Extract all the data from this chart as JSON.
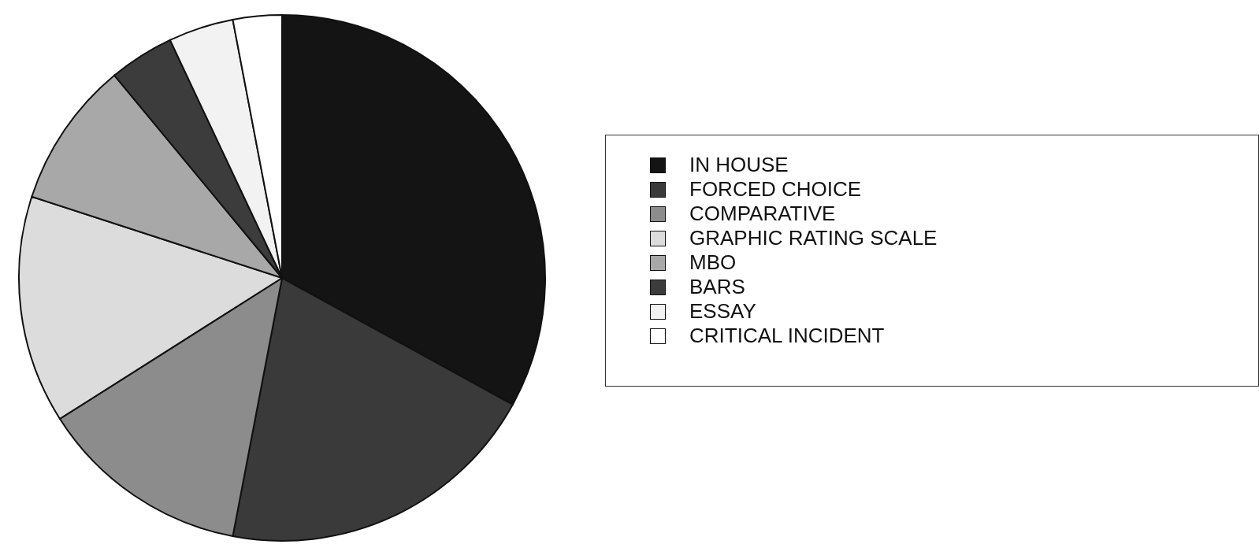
{
  "chart_data": {
    "type": "pie",
    "categories": [
      "IN HOUSE",
      "FORCED CHOICE",
      "COMPARATIVE",
      "GRAPHIC RATING SCALE",
      "MBO",
      "BARS",
      "ESSAY",
      "CRITICAL INCIDENT"
    ],
    "values": [
      33,
      20,
      13,
      14,
      9,
      4,
      4,
      3
    ],
    "colors": [
      "#141414",
      "#3a3a3a",
      "#8c8c8c",
      "#dcdcdc",
      "#a8a8a8",
      "#3c3c3c",
      "#f2f2f2",
      "#ffffff"
    ],
    "legend": "right"
  }
}
